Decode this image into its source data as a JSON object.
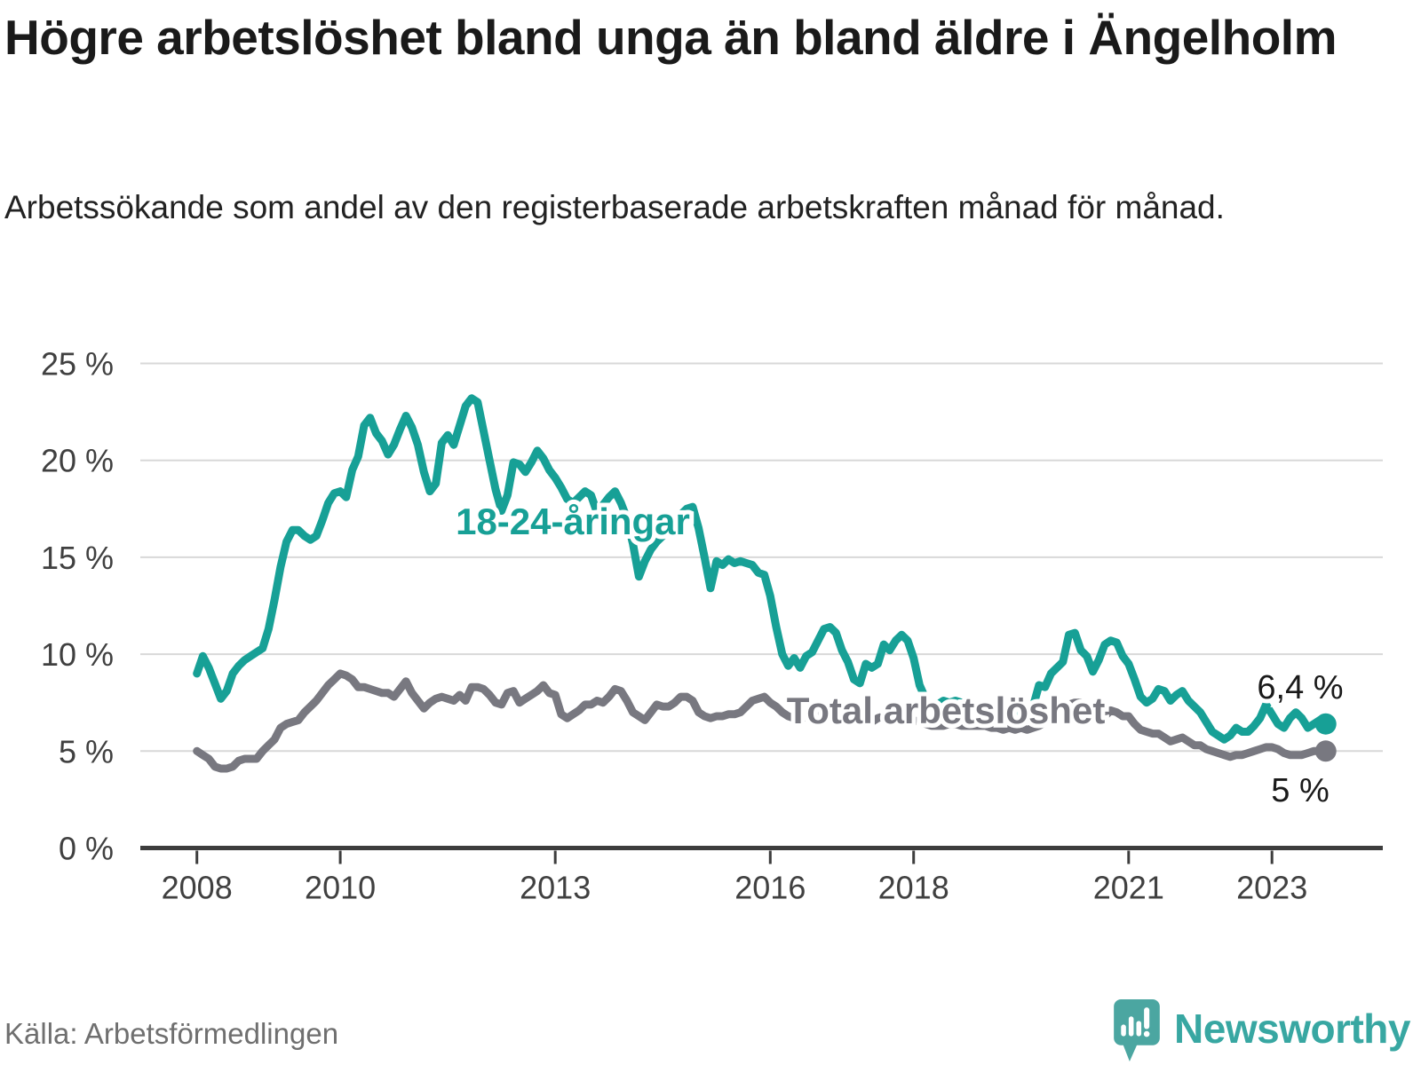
{
  "header": {
    "title": "Högre arbetslöshet bland unga än bland äldre i Ängelholm",
    "subtitle": "Arbetssökande som andel av den registerbaserade arbetskraften månad för månad."
  },
  "chart_data": {
    "type": "line",
    "unit": "%",
    "x_start": "2008-01",
    "x_end": "2023-10",
    "x_tick_years": [
      2008,
      2010,
      2013,
      2016,
      2018,
      2021,
      2023
    ],
    "y_ticks": [
      "0 %",
      "5 %",
      "10 %",
      "15 %",
      "20 %",
      "25 %"
    ],
    "ylim": [
      0,
      25
    ],
    "grid": true,
    "series": [
      {
        "name": "18-24-åringar",
        "color": "#17a096",
        "end_label": "6,4 %",
        "values": [
          9.0,
          9.9,
          9.3,
          8.5,
          7.7,
          8.1,
          9.0,
          9.4,
          9.7,
          9.9,
          10.1,
          10.3,
          11.3,
          12.8,
          14.5,
          15.8,
          16.4,
          16.4,
          16.1,
          15.9,
          16.1,
          16.9,
          17.8,
          18.3,
          18.4,
          18.1,
          19.5,
          20.2,
          21.8,
          22.2,
          21.4,
          21.0,
          20.3,
          20.8,
          21.6,
          22.3,
          21.7,
          20.8,
          19.4,
          18.4,
          18.8,
          20.9,
          21.3,
          20.8,
          21.8,
          22.8,
          23.2,
          23.0,
          21.5,
          20.0,
          18.5,
          17.4,
          18.2,
          19.9,
          19.8,
          19.4,
          19.9,
          20.5,
          20.1,
          19.5,
          19.1,
          18.6,
          18.0,
          17.8,
          18.1,
          18.4,
          18.2,
          17.3,
          17.7,
          18.1,
          18.4,
          17.8,
          17.0,
          15.7,
          14.0,
          14.8,
          15.4,
          15.8,
          16.1,
          16.5,
          16.9,
          17.2,
          17.5,
          17.6,
          16.5,
          15.0,
          13.4,
          14.8,
          14.6,
          14.9,
          14.7,
          14.8,
          14.7,
          14.6,
          14.2,
          14.1,
          13.0,
          11.4,
          10.0,
          9.4,
          9.8,
          9.3,
          9.9,
          10.1,
          10.7,
          11.3,
          11.4,
          11.1,
          10.2,
          9.6,
          8.7,
          8.5,
          9.5,
          9.3,
          9.5,
          10.5,
          10.2,
          10.7,
          11.0,
          10.7,
          9.8,
          8.4,
          7.7,
          7.2,
          7.4,
          7.6,
          7.5,
          7.6,
          7.5,
          7.4,
          7.4,
          7.3,
          7.4,
          6.9,
          7.1,
          7.3,
          7.5,
          7.0,
          7.4,
          6.9,
          7.3,
          8.4,
          8.3,
          9.0,
          9.3,
          9.6,
          11.0,
          11.1,
          10.2,
          9.9,
          9.1,
          9.7,
          10.5,
          10.7,
          10.6,
          9.9,
          9.5,
          8.7,
          7.8,
          7.5,
          7.7,
          8.2,
          8.1,
          7.6,
          7.9,
          8.1,
          7.6,
          7.3,
          7.0,
          6.5,
          6.0,
          5.8,
          5.6,
          5.8,
          6.2,
          6.0,
          6.0,
          6.3,
          6.7,
          7.4,
          6.9,
          6.4,
          6.2,
          6.7,
          7.0,
          6.7,
          6.2,
          6.4,
          6.6,
          6.4
        ]
      },
      {
        "name": "Total arbetslöshet",
        "color": "#787880",
        "end_label": "5 %",
        "values": [
          5.0,
          4.8,
          4.6,
          4.2,
          4.1,
          4.1,
          4.2,
          4.5,
          4.6,
          4.6,
          4.6,
          5.0,
          5.3,
          5.6,
          6.2,
          6.4,
          6.5,
          6.6,
          7.0,
          7.3,
          7.6,
          8.0,
          8.4,
          8.7,
          9.0,
          8.9,
          8.7,
          8.3,
          8.3,
          8.2,
          8.1,
          8.0,
          8.0,
          7.8,
          8.2,
          8.6,
          8.0,
          7.6,
          7.2,
          7.5,
          7.7,
          7.8,
          7.7,
          7.6,
          7.9,
          7.6,
          8.3,
          8.3,
          8.2,
          7.9,
          7.5,
          7.4,
          8.0,
          8.1,
          7.5,
          7.7,
          7.9,
          8.1,
          8.4,
          8.0,
          7.9,
          6.9,
          6.7,
          6.9,
          7.1,
          7.4,
          7.4,
          7.6,
          7.5,
          7.8,
          8.2,
          8.1,
          7.6,
          7.0,
          6.8,
          6.6,
          7.0,
          7.4,
          7.3,
          7.3,
          7.5,
          7.8,
          7.8,
          7.6,
          7.0,
          6.8,
          6.7,
          6.8,
          6.8,
          6.9,
          6.9,
          7.0,
          7.3,
          7.6,
          7.7,
          7.8,
          7.5,
          7.3,
          7.0,
          6.8,
          6.7,
          6.6,
          6.8,
          6.9,
          7.0,
          7.0,
          7.0,
          6.9,
          6.6,
          6.5,
          6.5,
          6.5,
          6.6,
          6.5,
          6.7,
          6.8,
          6.8,
          6.9,
          6.9,
          6.8,
          6.6,
          6.5,
          6.4,
          6.3,
          6.3,
          6.3,
          6.4,
          6.4,
          6.3,
          6.3,
          6.3,
          6.3,
          6.3,
          6.2,
          6.2,
          6.1,
          6.2,
          6.1,
          6.2,
          6.1,
          6.2,
          6.3,
          6.5,
          6.6,
          6.8,
          6.9,
          7.4,
          7.5,
          7.5,
          7.2,
          6.9,
          6.7,
          6.8,
          7.1,
          7.0,
          6.8,
          6.8,
          6.4,
          6.1,
          6.0,
          5.9,
          5.9,
          5.7,
          5.5,
          5.6,
          5.7,
          5.5,
          5.3,
          5.3,
          5.1,
          5.0,
          4.9,
          4.8,
          4.7,
          4.8,
          4.8,
          4.9,
          5.0,
          5.1,
          5.2,
          5.2,
          5.1,
          4.9,
          4.8,
          4.8,
          4.8,
          4.9,
          5.0,
          5.0,
          5.0
        ]
      }
    ]
  },
  "footer": {
    "source": "Källa: Arbetsförmedlingen",
    "brand": "Newsworthy"
  },
  "colors": {
    "accent_teal": "#17a096",
    "logo_teal": "#4ba6a1",
    "wordmark_teal": "#38a7a2",
    "line_gray": "#787880",
    "grid": "#d8d8d8",
    "axis": "#3d3d3d",
    "text_dark": "#1a1a1a",
    "text_axis": "#404040",
    "text_source": "#6f6f6f"
  }
}
